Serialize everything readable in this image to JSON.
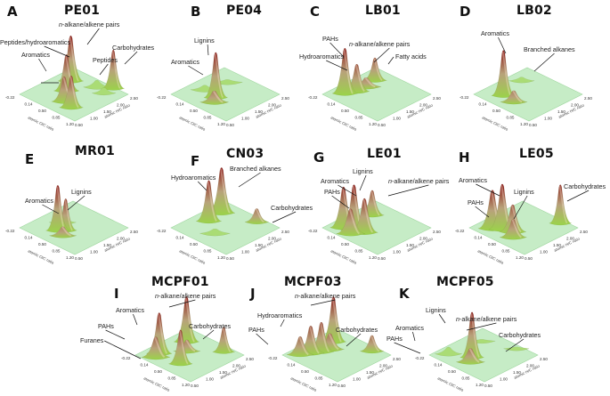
{
  "figure": {
    "colors": {
      "plane": "#c6ecc6",
      "plane_edge": "#9fd69f",
      "peak_low": "#9bd34a",
      "peak_mid": "#b8a27a",
      "peak_high": "#8b1a1a"
    }
  },
  "chart_data": [
    {
      "type": "surface3d",
      "panel": "A",
      "title": "PE01",
      "xlabel": "atomic O/C ratio",
      "ylabel": "atomic H/C ratio",
      "x_ticks": [
        "-0.22",
        "0.14",
        "0.50",
        "0.85",
        "1.20"
      ],
      "y_ticks": [
        "0.50",
        "1.00",
        "1.50",
        "2.00",
        "2.50"
      ],
      "xlim": [
        -0.22,
        1.2
      ],
      "ylim": [
        0.5,
        2.5
      ],
      "peaks": [
        {
          "oc": 0.55,
          "hc": 1.05,
          "height": 0.55,
          "width": 0.07
        },
        {
          "oc": 0.8,
          "hc": 0.95,
          "height": 0.7,
          "width": 0.06
        },
        {
          "oc": 0.3,
          "hc": 1.5,
          "height": 0.8,
          "width": 0.07
        },
        {
          "oc": 0.1,
          "hc": 1.95,
          "height": 1.0,
          "width": 0.07
        },
        {
          "oc": 0.6,
          "hc": 2.2,
          "height": 0.15,
          "width": 0.08
        },
        {
          "oc": 0.85,
          "hc": 2.1,
          "height": 0.12,
          "width": 0.06
        },
        {
          "oc": 0.85,
          "hc": 2.45,
          "height": 0.85,
          "width": 0.05
        }
      ],
      "annotations": [
        "n-alkane/alkene pairs",
        "Peptides/hydroaromatics",
        "Aromatics",
        "Peptides",
        "Carbohydrates"
      ]
    },
    {
      "type": "surface3d",
      "panel": "B",
      "title": "PE04",
      "xlabel": "atomic O/C ratio",
      "ylabel": "atomic H/C ratio",
      "x_ticks": [
        "-0.22",
        "0.14",
        "0.50",
        "0.85",
        "1.20"
      ],
      "y_ticks": [
        "0.50",
        "1.00",
        "1.50",
        "2.00",
        "2.50"
      ],
      "xlim": [
        -0.22,
        1.2
      ],
      "ylim": [
        0.5,
        2.5
      ],
      "peaks": [
        {
          "oc": 0.45,
          "hc": 1.2,
          "height": 1.0,
          "width": 0.06
        },
        {
          "oc": 0.55,
          "hc": 1.0,
          "height": 0.25,
          "width": 0.09
        },
        {
          "oc": 0.1,
          "hc": 1.3,
          "height": 0.1,
          "width": 0.09
        },
        {
          "oc": 0.2,
          "hc": 2.0,
          "height": 0.06,
          "width": 0.1
        }
      ],
      "annotations": [
        "Lignins",
        "Aromatics"
      ]
    },
    {
      "type": "surface3d",
      "panel": "C",
      "title": "LB01",
      "xlabel": "atomic O/C ratio",
      "ylabel": "atomic H/C ratio",
      "x_ticks": [
        "-0.22",
        "0.14",
        "0.50",
        "0.85",
        "1.20"
      ],
      "y_ticks": [
        "0.50",
        "1.00",
        "1.50",
        "2.00",
        "2.50"
      ],
      "xlim": [
        -0.22,
        1.2
      ],
      "ylim": [
        0.5,
        2.5
      ],
      "peaks": [
        {
          "oc": 0.05,
          "hc": 0.95,
          "height": 1.0,
          "width": 0.07
        },
        {
          "oc": 0.15,
          "hc": 1.25,
          "height": 0.6,
          "width": 0.07
        },
        {
          "oc": 0.15,
          "hc": 1.6,
          "height": 0.2,
          "width": 0.1
        },
        {
          "oc": 0.1,
          "hc": 2.0,
          "height": 0.5,
          "width": 0.06
        }
      ],
      "annotations": [
        "PAHs",
        "n-alkane/alkene pairs",
        "Hydroaromatics",
        "Fatty acids"
      ]
    },
    {
      "type": "surface3d",
      "panel": "D",
      "title": "LB02",
      "xlabel": "atomic O/C ratio",
      "ylabel": "atomic H/C ratio",
      "x_ticks": [
        "-0.22",
        "0.14",
        "0.50",
        "0.85",
        "1.20"
      ],
      "y_ticks": [
        "0.50",
        "1.00",
        "1.50",
        "2.00",
        "2.50"
      ],
      "xlim": [
        -0.22,
        1.2
      ],
      "ylim": [
        0.5,
        2.5
      ],
      "peaks": [
        {
          "oc": 0.2,
          "hc": 1.0,
          "height": 1.0,
          "width": 0.06
        },
        {
          "oc": 0.5,
          "hc": 0.95,
          "height": 0.25,
          "width": 0.08
        },
        {
          "oc": 0.05,
          "hc": 1.9,
          "height": 0.08,
          "width": 0.07
        }
      ],
      "annotations": [
        "Aromatics",
        "Branched alkanes"
      ]
    },
    {
      "type": "surface3d",
      "panel": "E",
      "title": "MR01",
      "xlabel": "atomic O/C ratio",
      "ylabel": "atomic H/C ratio",
      "x_ticks": [
        "-0.22",
        "0.14",
        "0.50",
        "0.85",
        "1.20"
      ],
      "y_ticks": [
        "0.50",
        "1.00",
        "1.50",
        "2.00",
        "2.50"
      ],
      "xlim": [
        -0.22,
        1.2
      ],
      "ylim": [
        0.5,
        2.5
      ],
      "peaks": [
        {
          "oc": 0.35,
          "hc": 1.1,
          "height": 1.0,
          "width": 0.06
        },
        {
          "oc": 0.45,
          "hc": 1.25,
          "height": 0.7,
          "width": 0.05
        },
        {
          "oc": 0.55,
          "hc": 1.0,
          "height": 0.2,
          "width": 0.08
        },
        {
          "oc": 0.2,
          "hc": 1.5,
          "height": 0.12,
          "width": 0.08
        }
      ],
      "annotations": [
        "Aromatics",
        "Lignins"
      ]
    },
    {
      "type": "surface3d",
      "panel": "F",
      "title": "CN03",
      "xlabel": "atomic O/C ratio",
      "ylabel": "atomic H/C ratio",
      "x_ticks": [
        "-0.22",
        "0.14",
        "0.50",
        "0.85",
        "1.20"
      ],
      "y_ticks": [
        "0.50",
        "1.00",
        "1.50",
        "2.00",
        "2.50"
      ],
      "xlim": [
        -0.22,
        1.2
      ],
      "ylim": [
        0.5,
        2.5
      ],
      "peaks": [
        {
          "oc": 0.1,
          "hc": 1.45,
          "height": 0.9,
          "width": 0.07
        },
        {
          "oc": 0.05,
          "hc": 2.0,
          "height": 1.0,
          "width": 0.08
        },
        {
          "oc": 0.75,
          "hc": 2.3,
          "height": 0.3,
          "width": 0.06
        },
        {
          "oc": 0.5,
          "hc": 1.1,
          "height": 0.1,
          "width": 0.1
        }
      ],
      "annotations": [
        "Hydroaromatics",
        "Branched alkanes",
        "Carbohydrates"
      ]
    },
    {
      "type": "surface3d",
      "panel": "G",
      "title": "LE01",
      "xlabel": "atomic O/C ratio",
      "ylabel": "atomic H/C ratio",
      "x_ticks": [
        "-0.22",
        "0.14",
        "0.50",
        "0.85",
        "1.20"
      ],
      "y_ticks": [
        "0.50",
        "1.00",
        "1.50",
        "2.00",
        "2.50"
      ],
      "xlim": [
        -0.22,
        1.2
      ],
      "ylim": [
        0.5,
        2.5
      ],
      "peaks": [
        {
          "oc": 0.05,
          "hc": 0.9,
          "height": 0.9,
          "width": 0.08
        },
        {
          "oc": 0.25,
          "hc": 1.0,
          "height": 1.0,
          "width": 0.08
        },
        {
          "oc": 0.45,
          "hc": 1.1,
          "height": 0.75,
          "width": 0.08
        },
        {
          "oc": 0.3,
          "hc": 0.8,
          "height": 0.55,
          "width": 0.09
        },
        {
          "oc": 0.1,
          "hc": 1.9,
          "height": 0.55,
          "width": 0.06
        }
      ],
      "annotations": [
        "Lignins",
        "Aromatics",
        "PAHs",
        "n-alkane/alkene pairs"
      ]
    },
    {
      "type": "surface3d",
      "panel": "H",
      "title": "LE05",
      "xlabel": "atomic O/C ratio",
      "ylabel": "atomic H/C ratio",
      "x_ticks": [
        "-0.22",
        "0.14",
        "0.50",
        "0.85",
        "1.20"
      ],
      "y_ticks": [
        "0.50",
        "1.00",
        "1.50",
        "2.00",
        "2.50"
      ],
      "xlim": [
        -0.22,
        1.2
      ],
      "ylim": [
        0.5,
        2.5
      ],
      "peaks": [
        {
          "oc": 0.1,
          "hc": 0.9,
          "height": 0.85,
          "width": 0.09
        },
        {
          "oc": 0.25,
          "hc": 1.05,
          "height": 1.0,
          "width": 0.08
        },
        {
          "oc": 0.45,
          "hc": 1.15,
          "height": 0.6,
          "width": 0.08
        },
        {
          "oc": 0.6,
          "hc": 0.95,
          "height": 0.4,
          "width": 0.08
        },
        {
          "oc": 0.85,
          "hc": 2.35,
          "height": 0.85,
          "width": 0.05
        }
      ],
      "annotations": [
        "Aromatics",
        "Lignins",
        "PAHs",
        "Carbohydrates"
      ]
    },
    {
      "type": "surface3d",
      "panel": "I",
      "title": "MCPF01",
      "xlabel": "atomic O/C ratio",
      "ylabel": "atomic H/C ratio",
      "x_ticks": [
        "-0.22",
        "0.14",
        "0.50",
        "0.85",
        "1.20"
      ],
      "y_ticks": [
        "0.50",
        "1.00",
        "1.50",
        "2.00",
        "2.50"
      ],
      "xlim": [
        -0.22,
        1.2
      ],
      "ylim": [
        0.5,
        2.5
      ],
      "peaks": [
        {
          "oc": 0.05,
          "hc": 1.0,
          "height": 0.9,
          "width": 0.07
        },
        {
          "oc": 0.1,
          "hc": 0.8,
          "height": 0.45,
          "width": 0.09
        },
        {
          "oc": 0.6,
          "hc": 1.0,
          "height": 0.75,
          "width": 0.06
        },
        {
          "oc": 0.1,
          "hc": 1.95,
          "height": 1.0,
          "width": 0.07
        },
        {
          "oc": 0.35,
          "hc": 1.6,
          "height": 0.25,
          "width": 0.08
        },
        {
          "oc": 0.85,
          "hc": 2.25,
          "height": 0.55,
          "width": 0.05
        }
      ],
      "annotations": [
        "n-alkane/alkene pairs",
        "Aromatics",
        "PAHs",
        "Furanes",
        "Carbohydrates"
      ]
    },
    {
      "type": "surface3d",
      "panel": "J",
      "title": "MCPF03",
      "xlabel": "atomic O/C ratio",
      "ylabel": "atomic H/C ratio",
      "x_ticks": [
        "-0.22",
        "0.14",
        "0.50",
        "0.85",
        "1.20"
      ],
      "y_ticks": [
        "0.50",
        "1.00",
        "1.50",
        "2.00",
        "2.50"
      ],
      "xlim": [
        -0.22,
        1.2
      ],
      "ylim": [
        0.5,
        2.5
      ],
      "peaks": [
        {
          "oc": 0.0,
          "hc": 0.85,
          "height": 0.4,
          "width": 0.08
        },
        {
          "oc": 0.1,
          "hc": 1.1,
          "height": 0.6,
          "width": 0.08
        },
        {
          "oc": 0.2,
          "hc": 1.35,
          "height": 0.65,
          "width": 0.07
        },
        {
          "oc": 0.25,
          "hc": 1.6,
          "height": 0.35,
          "width": 0.09
        },
        {
          "oc": 0.1,
          "hc": 1.95,
          "height": 1.0,
          "width": 0.07
        },
        {
          "oc": 0.85,
          "hc": 2.3,
          "height": 0.35,
          "width": 0.06
        }
      ],
      "annotations": [
        "n-alkane/alkene pairs",
        "Hydroaromatics",
        "PAHs",
        "Carbohydrates"
      ]
    },
    {
      "type": "surface3d",
      "panel": "K",
      "title": "MCPF05",
      "xlabel": "atomic O/C ratio",
      "ylabel": "atomic H/C ratio",
      "x_ticks": [
        "-0.22",
        "0.14",
        "0.50",
        "0.85",
        "1.20"
      ],
      "y_ticks": [
        "0.50",
        "1.00",
        "1.50",
        "2.00",
        "2.50"
      ],
      "xlim": [
        -0.22,
        1.2
      ],
      "ylim": [
        0.5,
        2.5
      ],
      "peaks": [
        {
          "oc": 0.4,
          "hc": 1.2,
          "height": 1.0,
          "width": 0.06
        },
        {
          "oc": 0.5,
          "hc": 1.0,
          "height": 0.3,
          "width": 0.09
        },
        {
          "oc": 0.0,
          "hc": 0.9,
          "height": 0.15,
          "width": 0.08
        },
        {
          "oc": 0.1,
          "hc": 2.0,
          "height": 0.04,
          "width": 0.08
        },
        {
          "oc": 0.75,
          "hc": 2.35,
          "height": 0.04,
          "width": 0.07
        }
      ],
      "annotations": [
        "Lignins",
        "n-alkane/alkene pairs",
        "Aromatics",
        "PAHs",
        "Carbohydrates"
      ]
    }
  ],
  "panels": [
    {
      "letter": "A",
      "title": "PE01",
      "labels": [
        {
          "text": "n-alkane/alkene pairs",
          "italic_prefix": "n"
        },
        {
          "text": "Peptides/hydroaromatics"
        },
        {
          "text": "Aromatics"
        },
        {
          "text": "Peptides"
        },
        {
          "text": "Carbohydrates"
        }
      ]
    },
    {
      "letter": "B",
      "title": "PE04",
      "labels": [
        {
          "text": "Lignins"
        },
        {
          "text": "Aromatics"
        }
      ]
    },
    {
      "letter": "C",
      "title": "LB01",
      "labels": [
        {
          "text": "PAHs"
        },
        {
          "text": "n-alkane/alkene pairs",
          "italic_prefix": "n"
        },
        {
          "text": "Hydroaromatics"
        },
        {
          "text": "Fatty acids"
        }
      ]
    },
    {
      "letter": "D",
      "title": "LB02",
      "labels": [
        {
          "text": "Aromatics"
        },
        {
          "text": "Branched alkanes"
        }
      ]
    },
    {
      "letter": "E",
      "title": "MR01",
      "labels": [
        {
          "text": "Aromatics"
        },
        {
          "text": "Lignins"
        }
      ]
    },
    {
      "letter": "F",
      "title": "CN03",
      "labels": [
        {
          "text": "Hydroaromatics"
        },
        {
          "text": "Branched alkanes"
        },
        {
          "text": "Carbohydrates"
        }
      ]
    },
    {
      "letter": "G",
      "title": "LE01",
      "labels": [
        {
          "text": "Lignins"
        },
        {
          "text": "Aromatics"
        },
        {
          "text": "PAHs"
        },
        {
          "text": "n-alkane/alkene pairs",
          "italic_prefix": "n"
        }
      ]
    },
    {
      "letter": "H",
      "title": "LE05",
      "labels": [
        {
          "text": "Aromatics"
        },
        {
          "text": "Lignins"
        },
        {
          "text": "PAHs"
        },
        {
          "text": "Carbohydrates"
        }
      ]
    },
    {
      "letter": "I",
      "title": "MCPF01",
      "labels": [
        {
          "text": "n-alkane/alkene pairs",
          "italic_prefix": "n"
        },
        {
          "text": "Aromatics"
        },
        {
          "text": "PAHs"
        },
        {
          "text": "Furanes"
        },
        {
          "text": "Carbohydrates"
        }
      ]
    },
    {
      "letter": "J",
      "title": "MCPF03",
      "labels": [
        {
          "text": "n-alkane/alkene pairs",
          "italic_prefix": "n"
        },
        {
          "text": "Hydroaromatics"
        },
        {
          "text": "PAHs"
        },
        {
          "text": "Carbohydrates"
        }
      ]
    },
    {
      "letter": "K",
      "title": "MCPF05",
      "labels": [
        {
          "text": "Lignins"
        },
        {
          "text": "n-alkane/alkene pairs",
          "italic_prefix": "n"
        },
        {
          "text": "Aromatics"
        },
        {
          "text": "PAHs"
        },
        {
          "text": "Carbohydrates"
        }
      ]
    }
  ]
}
